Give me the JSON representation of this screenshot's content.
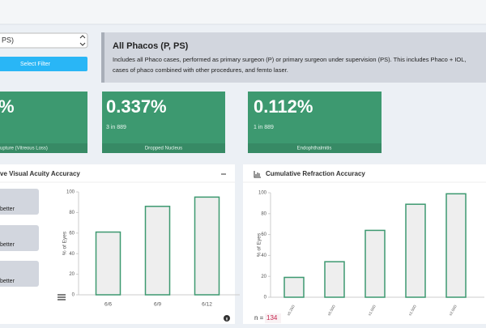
{
  "filter": {
    "select": "PS)",
    "button": "Select Filter"
  },
  "info": {
    "title": "All Phacos (P, PS)",
    "lines": [
      "Includes all Phaco cases, performed as primary surgeon (P) or primary surgeon under supervision (PS). This includes Phaco + IOL,",
      "cases of phaco combined with other procedures, and femto laser."
    ]
  },
  "stats": [
    {
      "value": "%",
      "label": "upture (Vitreous Loss)"
    },
    {
      "value": "0.337%",
      "sub": "3 in 889",
      "label": "Dropped Nucleus"
    },
    {
      "value": "0.112%",
      "sub": "1 in 889",
      "label": "Endophthalmitis"
    }
  ],
  "left_buttons": [
    "better",
    "better",
    "better"
  ],
  "chart_data": [
    {
      "type": "bar",
      "title": "ve Visual Acuity Accuracy",
      "ylabel": "% of Eyes",
      "categories": [
        "6/6",
        "6/9",
        "6/12"
      ],
      "values": [
        61,
        86,
        95
      ],
      "color": "#eeeeee",
      "edge_color": "#3d9970",
      "ylim": [
        0,
        100
      ],
      "yticks": [
        0,
        20,
        40,
        60,
        80,
        100
      ]
    },
    {
      "type": "bar",
      "title": "Cumulative Refraction Accuracy",
      "ylabel": "% of Eyes",
      "categories": [
        "±0.25D",
        "±0.50D",
        "±1.00D",
        "±1.50D",
        "±2.00D"
      ],
      "values": [
        19,
        34,
        64,
        89,
        99
      ],
      "color": "#eeeeee",
      "edge_color": "#3d9970",
      "ylim": [
        0,
        100
      ],
      "yticks": [
        0,
        20,
        40,
        60,
        80,
        100
      ]
    }
  ],
  "footer": {
    "n_label": "n =",
    "n": 134
  }
}
